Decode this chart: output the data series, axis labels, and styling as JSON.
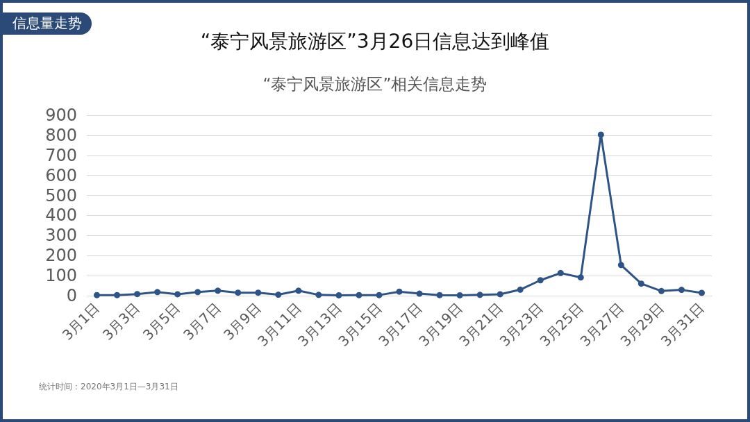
{
  "chart_data": {
    "type": "line",
    "title": "“泰宁风景旅游区”3月26日信息达到峰值",
    "subtitle": "“泰宁风景旅游区”相关信息走势",
    "annotations": [
      "信息量走势",
      "统计时间：2020年3月1日—3月31日"
    ],
    "categories": [
      "3月1日",
      null,
      "3月3日",
      null,
      "3月5日",
      null,
      "3月7日",
      null,
      "3月9日",
      null,
      "3月11日",
      null,
      "3月13日",
      null,
      "3月15日",
      null,
      "3月17日",
      null,
      "3月19日",
      null,
      "3月21日",
      null,
      "3月23日",
      null,
      "3月25日",
      null,
      "3月27日",
      null,
      "3月29日",
      null,
      "3月31日"
    ],
    "series": [
      {
        "color": "#2e5487",
        "values": [
          3,
          3,
          8,
          18,
          7,
          18,
          25,
          15,
          15,
          5,
          25,
          4,
          2,
          3,
          3,
          20,
          10,
          3,
          2,
          4,
          7,
          30,
          77,
          113,
          91,
          803,
          153,
          60,
          23,
          29,
          14
        ]
      }
    ],
    "ylim": [
      0,
      900
    ],
    "yticks": [
      0,
      100,
      200,
      300,
      400,
      500,
      600,
      700,
      800,
      900
    ],
    "grid": "y",
    "marker": "circle",
    "line_style": "solid"
  }
}
